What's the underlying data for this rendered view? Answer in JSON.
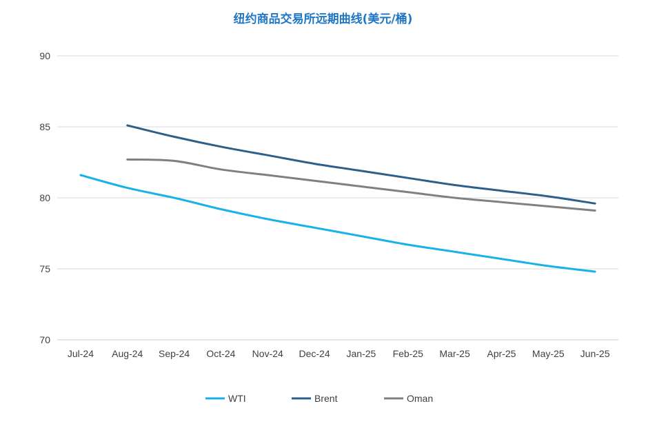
{
  "chart_data": {
    "type": "line",
    "title": "纽约商品交易所远期曲线(美元/桶)",
    "xlabel": "",
    "ylabel": "",
    "categories": [
      "Jul-24",
      "Aug-24",
      "Sep-24",
      "Oct-24",
      "Nov-24",
      "Dec-24",
      "Jan-25",
      "Feb-25",
      "Mar-25",
      "Apr-25",
      "May-25",
      "Jun-25"
    ],
    "yticks": [
      70,
      75,
      80,
      85,
      90
    ],
    "ylim": [
      70,
      90
    ],
    "grid": true,
    "legend_position": "bottom",
    "series": [
      {
        "name": "WTI",
        "color": "#19b2e8",
        "values": [
          81.6,
          80.7,
          80.0,
          79.2,
          78.5,
          77.9,
          77.3,
          76.7,
          76.2,
          75.7,
          75.2,
          74.8
        ]
      },
      {
        "name": "Brent",
        "color": "#2d5f8b",
        "values": [
          null,
          85.1,
          84.3,
          83.6,
          83.0,
          82.4,
          81.9,
          81.4,
          80.9,
          80.5,
          80.1,
          79.6
        ]
      },
      {
        "name": "Oman",
        "color": "#808080",
        "values": [
          null,
          82.7,
          82.6,
          82.0,
          81.6,
          81.2,
          80.8,
          80.4,
          80.0,
          79.7,
          79.4,
          79.1
        ]
      }
    ]
  }
}
